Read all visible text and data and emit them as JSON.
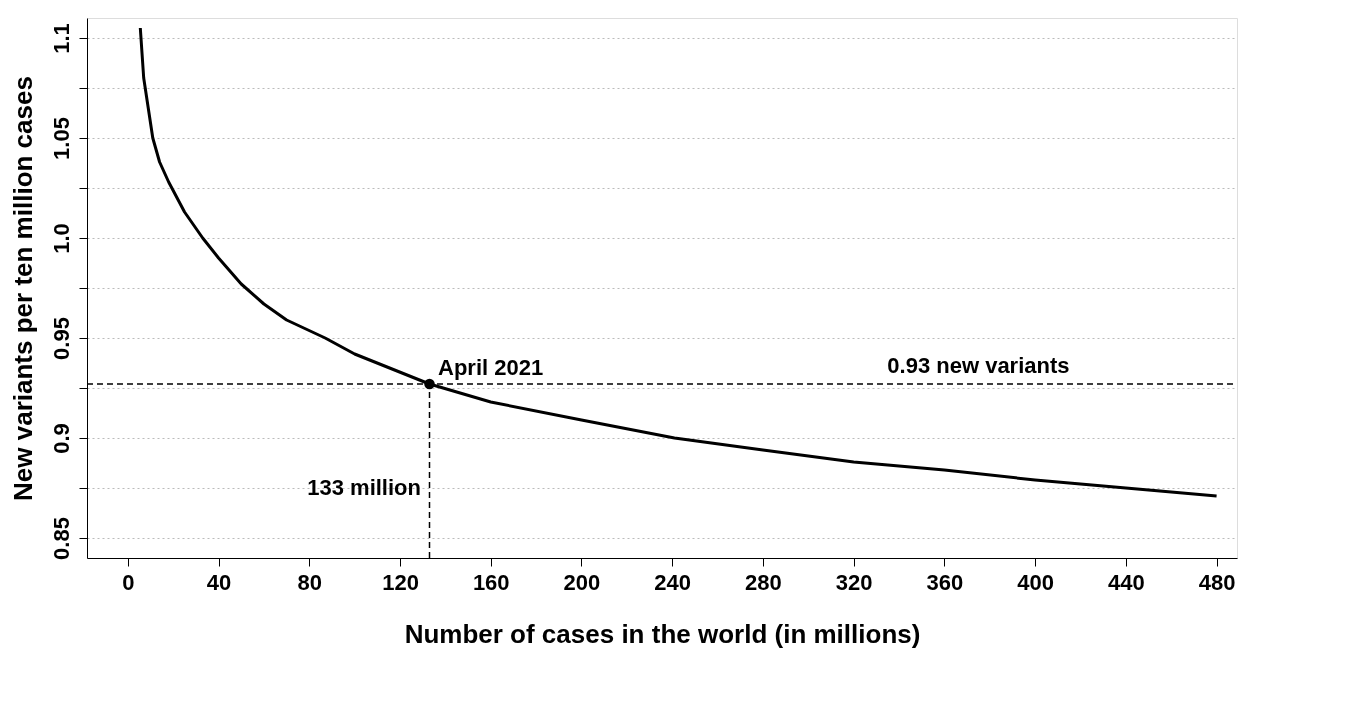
{
  "chart_data": {
    "type": "line",
    "xlabel": "Number of cases in the world (in millions)",
    "ylabel": "New variants per ten million cases",
    "xlim": [
      -18,
      489
    ],
    "ylim": [
      0.84,
      1.11
    ],
    "xticks": [
      0,
      40,
      80,
      120,
      160,
      200,
      240,
      280,
      320,
      360,
      400,
      440,
      480
    ],
    "yticks": [
      0.85,
      {
        "value": 0.875,
        "label": null
      },
      0.9,
      {
        "value": 0.925,
        "label": null
      },
      0.95,
      {
        "value": 0.975,
        "label": null
      },
      {
        "value": 1.0,
        "label": "1.0"
      },
      {
        "value": 1.025,
        "label": null
      },
      1.05,
      {
        "value": 1.075,
        "label": null
      },
      1.1
    ],
    "grid": "y",
    "line_style": "solid",
    "marker": "none",
    "series": [
      {
        "color": "#000000",
        "x": [
          5.5,
          7,
          9,
          11,
          14,
          18,
          25,
          33,
          40,
          50,
          60,
          70,
          87,
          100,
          133,
          160,
          200,
          241,
          280,
          320,
          360,
          400,
          440,
          480
        ],
        "values": [
          1.105,
          1.08,
          1.065,
          1.05,
          1.038,
          1.028,
          1.013,
          1.0,
          0.99,
          0.977,
          0.967,
          0.959,
          0.95,
          0.942,
          0.927,
          0.918,
          0.909,
          0.9,
          0.894,
          0.888,
          0.884,
          0.879,
          0.875,
          0.871
        ]
      },
      {
        "type": "scatter",
        "marker": "circle",
        "color": "#000000",
        "x": [
          133
        ],
        "values": [
          0.927
        ]
      }
    ],
    "ref_lines": [
      {
        "axis": "y",
        "value": 0.927,
        "line_style": "dashed",
        "color": "#000000"
      },
      {
        "axis": "x",
        "value": 133,
        "line_style": "dashed",
        "color": "#000000"
      }
    ],
    "annotations": [
      {
        "text": "April 2021",
        "x": 135,
        "y": 0.927
      },
      {
        "text": "0.93 new variants",
        "x": 375,
        "y": 0.927
      },
      {
        "text": "133 million",
        "x": 131,
        "y": 0.875
      }
    ]
  }
}
